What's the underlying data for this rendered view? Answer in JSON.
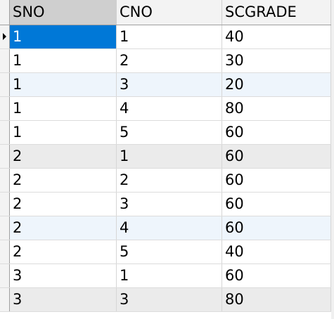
{
  "grid": {
    "columns": [
      {
        "key": "sno",
        "label": "SNO"
      },
      {
        "key": "cno",
        "label": "CNO"
      },
      {
        "key": "grade",
        "label": "SCGRADE"
      }
    ],
    "rows": [
      {
        "sno": "1",
        "cno": "1",
        "grade": "40"
      },
      {
        "sno": "1",
        "cno": "2",
        "grade": "30"
      },
      {
        "sno": "1",
        "cno": "3",
        "grade": "20"
      },
      {
        "sno": "1",
        "cno": "4",
        "grade": "80"
      },
      {
        "sno": "1",
        "cno": "5",
        "grade": "60"
      },
      {
        "sno": "2",
        "cno": "1",
        "grade": "60"
      },
      {
        "sno": "2",
        "cno": "2",
        "grade": "60"
      },
      {
        "sno": "2",
        "cno": "3",
        "grade": "60"
      },
      {
        "sno": "2",
        "cno": "4",
        "grade": "60"
      },
      {
        "sno": "2",
        "cno": "5",
        "grade": "40"
      },
      {
        "sno": "3",
        "cno": "1",
        "grade": "60"
      },
      {
        "sno": "3",
        "cno": "3",
        "grade": "80"
      }
    ],
    "current_row_icon": "current-row-arrow-icon",
    "colors": {
      "selection": "#0078d7",
      "header_background": "#f3f3f3",
      "selected_header": "#cfcfcf",
      "alt_row_blue": "#eef5fc",
      "alt_row_grey": "#ebebeb"
    }
  }
}
